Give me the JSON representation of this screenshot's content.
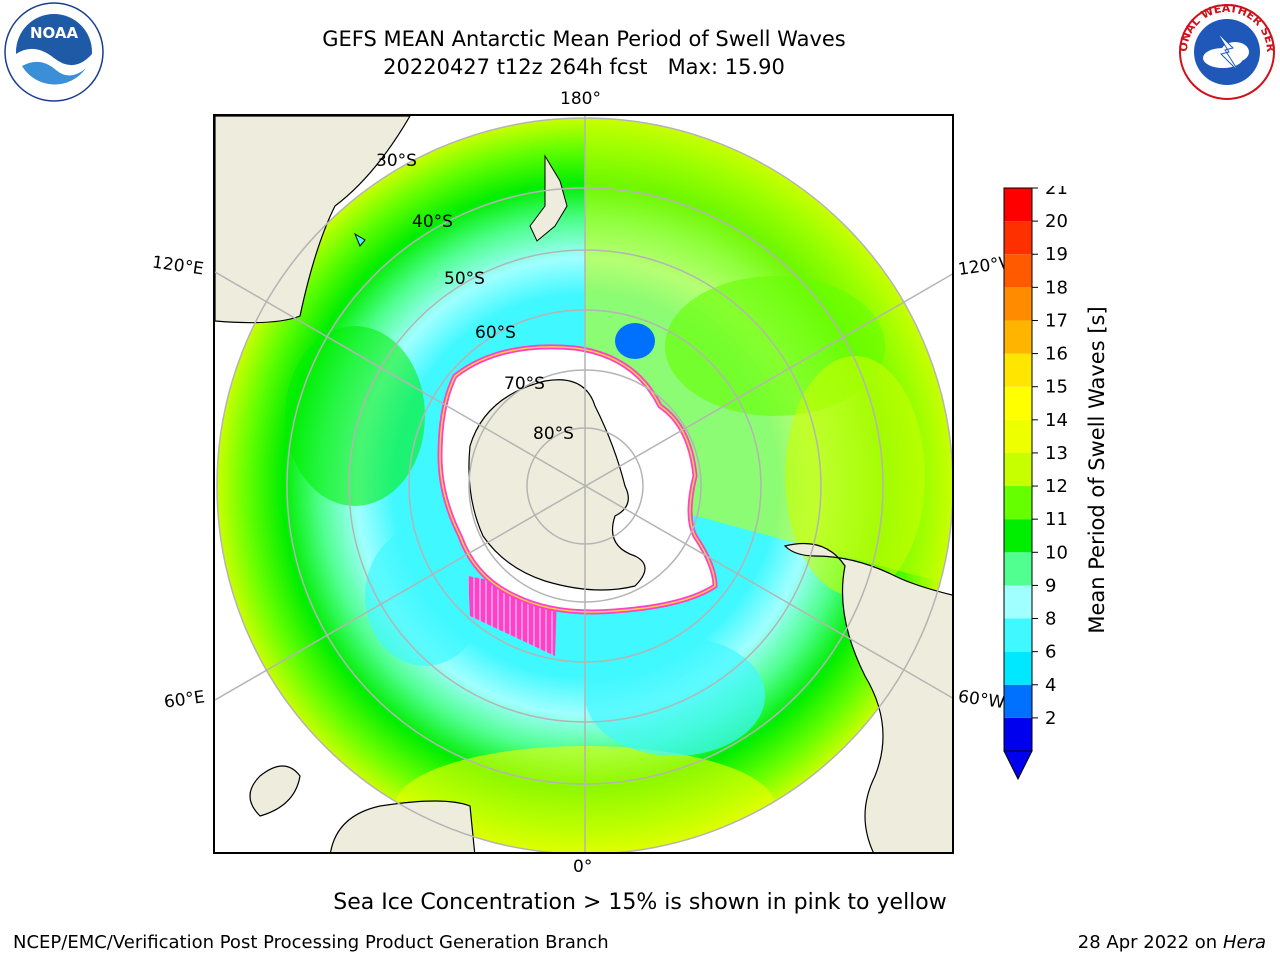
{
  "header": {
    "title_line1": "GEFS MEAN Antarctic Mean Period of Swell Waves",
    "title_line2": "20220427 t12z 264h fcst   Max: 15.90"
  },
  "logos": {
    "left": {
      "icon": "noaa-logo",
      "text": "NOAA"
    },
    "right": {
      "icon": "national-weather-service-logo",
      "text": "NATIONAL WEATHER SERVICE"
    }
  },
  "map": {
    "projection": "south-polar-stereographic",
    "longitude_labels": {
      "top": "180°",
      "bottom": "0°",
      "upper_left": "120°E",
      "upper_right": "120°W",
      "lower_left": "60°E",
      "lower_right": "60°W"
    },
    "latitude_labels": [
      "30°S",
      "40°S",
      "50°S",
      "60°S",
      "70°S",
      "80°S"
    ],
    "land_color": "#eeecdc",
    "ice_colors": [
      "#ff33cc",
      "#ffd040"
    ]
  },
  "colorbar": {
    "title": "Mean Period of Swell Waves [s]",
    "ticks": [
      "21",
      "20",
      "19",
      "18",
      "17",
      "16",
      "15",
      "14",
      "13",
      "12",
      "11",
      "10",
      "9",
      "8",
      "6",
      "4",
      "2"
    ],
    "colors": [
      "#0000ee",
      "#0070ff",
      "#00e8ff",
      "#40f8ff",
      "#a0ffff",
      "#50ff90",
      "#00ee00",
      "#66ff00",
      "#c8ff00",
      "#eeff00",
      "#ffff00",
      "#ffe600",
      "#ffb400",
      "#ff8c00",
      "#ff5a00",
      "#ff3000",
      "#ff0000"
    ]
  },
  "note": "Sea Ice Concentration > 15% is shown in pink to yellow",
  "footer": {
    "left": "NCEP/EMC/Verification Post Processing Product Generation Branch",
    "right_prefix": "28 Apr 2022 on ",
    "right_host": "Hera"
  }
}
